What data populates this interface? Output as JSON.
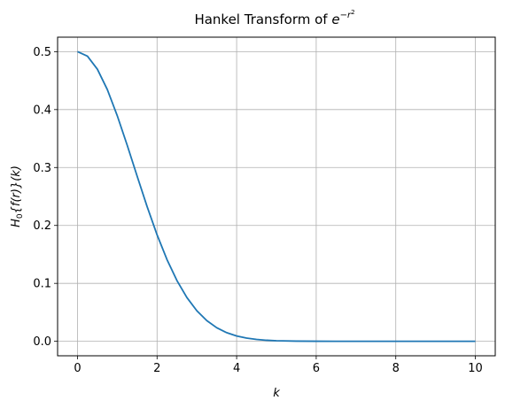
{
  "chart_data": {
    "type": "line",
    "title": "Hankel Transform of ",
    "title_math": {
      "base": "e",
      "exponent": "−r",
      "exponent_power": "2"
    },
    "xlabel": "k",
    "ylabel": "H",
    "ylabel_parts": {
      "sub": "0",
      "rest": "{f(r)}(k)"
    },
    "xlim": [
      -0.5,
      10.5
    ],
    "ylim": [
      -0.025,
      0.525
    ],
    "xticks": [
      0,
      2,
      4,
      6,
      8,
      10
    ],
    "xtick_labels": [
      "0",
      "2",
      "4",
      "6",
      "8",
      "10"
    ],
    "yticks": [
      0.0,
      0.1,
      0.2,
      0.3,
      0.4,
      0.5
    ],
    "ytick_labels": [
      "0.0",
      "0.1",
      "0.2",
      "0.3",
      "0.4",
      "0.5"
    ],
    "grid": true,
    "series": [
      {
        "color": "#1f77b4",
        "x": [
          0,
          0.25,
          0.5,
          0.75,
          1.0,
          1.25,
          1.5,
          1.75,
          2.0,
          2.25,
          2.5,
          2.75,
          3.0,
          3.25,
          3.5,
          3.75,
          4.0,
          4.25,
          4.5,
          4.75,
          5.0,
          5.5,
          6.0,
          6.5,
          7.0,
          7.5,
          8.0,
          8.5,
          9.0,
          9.5,
          10.0
        ],
        "y": [
          0.5,
          0.4923,
          0.4697,
          0.4346,
          0.3894,
          0.3384,
          0.2849,
          0.2325,
          0.1839,
          0.141,
          0.1048,
          0.0755,
          0.0527,
          0.0357,
          0.0234,
          0.0149,
          0.0092,
          0.0055,
          0.0032,
          0.0018,
          0.001,
          0.0003,
          0.0001,
          0.0,
          0.0,
          0.0,
          0.0,
          0.0,
          0.0,
          0.0,
          0.0
        ]
      }
    ]
  }
}
